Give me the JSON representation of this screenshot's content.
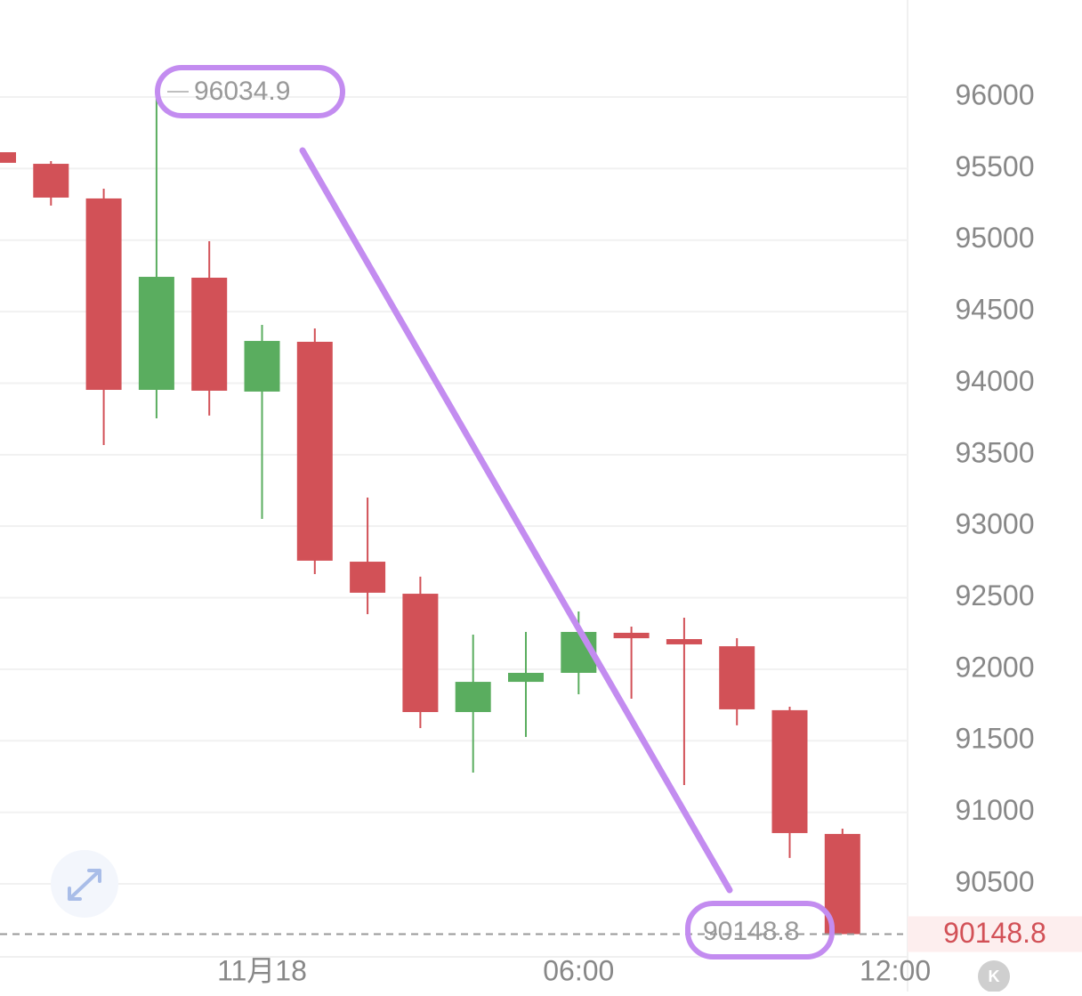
{
  "chart_data": {
    "type": "candlestick",
    "categories": [
      null,
      null,
      null,
      null,
      null,
      "11月18",
      null,
      null,
      null,
      null,
      null,
      "06:00",
      null,
      null,
      null,
      null,
      null,
      "12:00"
    ],
    "open": [
      95614,
      95533,
      95291,
      93953,
      94737,
      93941,
      94289,
      92752,
      92528,
      91701,
      91912,
      91975,
      92255,
      92211,
      92161,
      91714,
      90849,
      null
    ],
    "high": [
      95614,
      95552,
      95359,
      96034.9,
      94992,
      94407,
      94382,
      93200,
      92647,
      92242,
      92261,
      92404,
      92298,
      92360,
      92217,
      91738,
      90886,
      null
    ],
    "low": [
      95540,
      95241,
      93567,
      93754,
      93773,
      93051,
      92665,
      92385,
      91589,
      91278,
      91527,
      91825,
      91794,
      91191,
      91608,
      90681,
      90148.8,
      null
    ],
    "close": [
      95540,
      95297,
      93953,
      94743,
      93947,
      94295,
      92759,
      92535,
      91701,
      91912,
      91975,
      92261,
      92217,
      92174,
      91720,
      90855,
      90148.8,
      null
    ],
    "up_color": "#5aad5f",
    "down_color": "#d25157",
    "ylim": [
      89990,
      96678
    ],
    "yticks": [
      90500,
      91000,
      91500,
      92000,
      92500,
      93000,
      93500,
      94000,
      94500,
      95000,
      95500,
      96000
    ],
    "grid": true
  },
  "buttons": {
    "kline": "K"
  }
}
